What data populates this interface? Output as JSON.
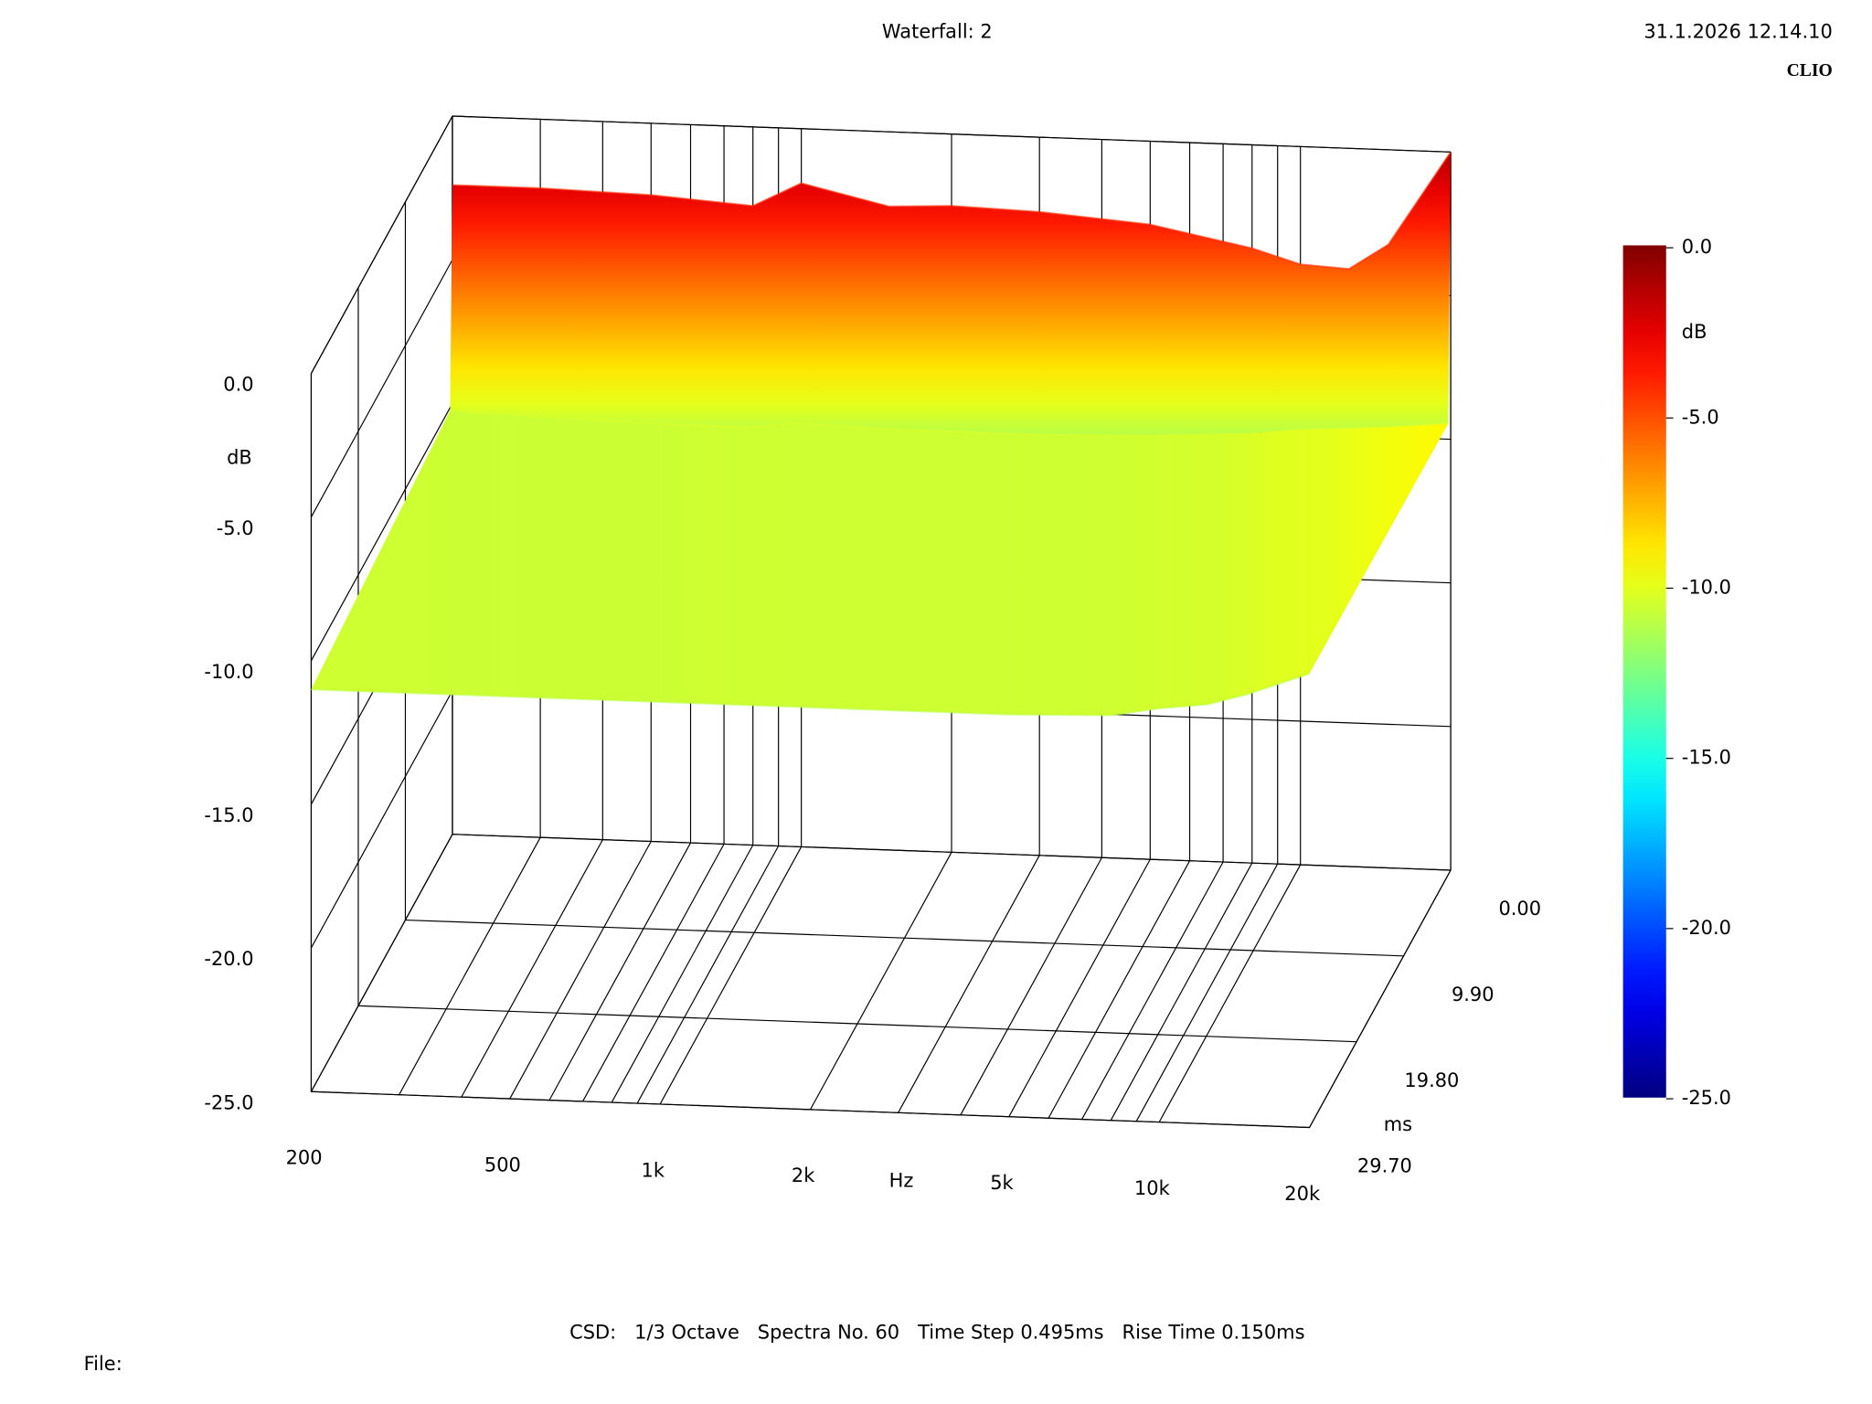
{
  "chart_data": {
    "type": "waterfall",
    "title": "Waterfall: 2",
    "date": "31.1.2026 12.14.10",
    "brand": "CLIO",
    "footer": "CSD:   1/3 Octave   Spectra No. 60   Time Step 0.495ms   Rise Time 0.150ms",
    "file_label": "File:",
    "x_label": "Hz",
    "z_label": "dB",
    "time_label": "ms",
    "colorbar_label": "dB",
    "log_x": true,
    "xlim": [
      200,
      20000
    ],
    "xticks": [
      200,
      500,
      {
        "value": 1000,
        "label": "1k"
      },
      {
        "value": 2000,
        "label": "2k"
      },
      {
        "value": 5000,
        "label": "5k"
      },
      {
        "value": 10000,
        "label": "10k"
      },
      {
        "value": 20000,
        "label": "20k"
      }
    ],
    "xminorticks": [
      300,
      400,
      600,
      700,
      800,
      900,
      3000,
      4000,
      6000,
      7000,
      8000,
      9000
    ],
    "zlim": [
      -25,
      0
    ],
    "zticks": [
      {
        "value": 0,
        "label": "0.0"
      },
      {
        "value": -5,
        "label": "-5.0"
      },
      {
        "value": -10,
        "label": "-10.0"
      },
      {
        "value": -15,
        "label": "-15.0"
      },
      {
        "value": -20,
        "label": "-20.0"
      },
      {
        "value": -25,
        "label": "-25.0"
      }
    ],
    "tlim": [
      0,
      29.7
    ],
    "tticks": [
      {
        "value": 0,
        "label": "0.00"
      },
      {
        "value": 9.9,
        "label": "9.90"
      },
      {
        "value": 19.8,
        "label": "19.80"
      },
      {
        "value": 29.7,
        "label": "29.70"
      }
    ],
    "colorbar_lim": [
      -25,
      0
    ],
    "colorbar_ticks": [
      {
        "value": 0,
        "label": "0.0"
      },
      {
        "value": -5,
        "label": "-5.0"
      },
      {
        "value": -10,
        "label": "-10.0"
      },
      {
        "value": -15,
        "label": "-15.0"
      },
      {
        "value": -20,
        "label": "-20.0"
      },
      {
        "value": -25,
        "label": "-25.0"
      }
    ],
    "x": [
      200,
      300,
      500,
      800,
      1000,
      1500,
      2000,
      3000,
      5000,
      8000,
      10000,
      12500,
      15000,
      20000
    ],
    "spectra": [
      {
        "time": 0,
        "values": [
          -2.4,
          -2.4,
          -2.5,
          -2.75,
          -1.9,
          -2.6,
          -2.5,
          -2.6,
          -2.9,
          -3.6,
          -4.1,
          -4.2,
          -3.3,
          0.0
        ]
      },
      {
        "time": 0.495,
        "values": [
          -10.1,
          -10.2,
          -10.3,
          -10.3,
          -10.1,
          -10.2,
          -10.2,
          -10.2,
          -10.1,
          -9.9,
          -9.7,
          -9.6,
          -9.5,
          -9.3
        ]
      },
      {
        "time": 29.7,
        "values": [
          -11.0,
          -11.0,
          -11.0,
          -11.0,
          -11.0,
          -11.0,
          -11.0,
          -11.0,
          -11.0,
          -10.9,
          -10.6,
          -10.4,
          -10.0,
          -9.2
        ]
      }
    ]
  }
}
